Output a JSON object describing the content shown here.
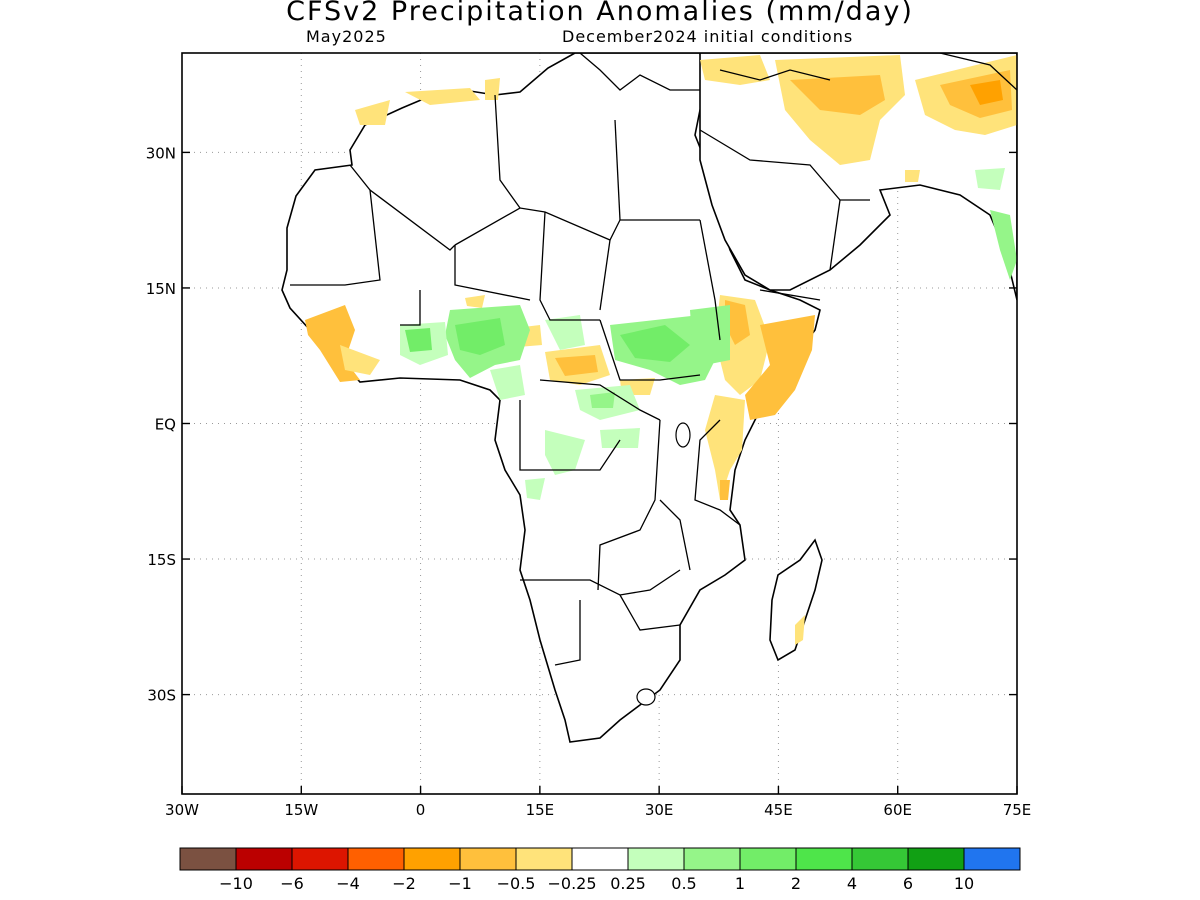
{
  "title": "CFSv2 Precipitation Anomalies (mm/day)",
  "valid_period": "May2025",
  "init_conditions": "December2024 initial conditions",
  "map": {
    "lon_range": [
      -30,
      75
    ],
    "lat_range": [
      -41,
      41
    ],
    "grid": "dotted",
    "x_ticks": [
      {
        "value": -30,
        "label": "30W"
      },
      {
        "value": -15,
        "label": "15W"
      },
      {
        "value": 0,
        "label": "0"
      },
      {
        "value": 15,
        "label": "15E"
      },
      {
        "value": 30,
        "label": "30E"
      },
      {
        "value": 45,
        "label": "45E"
      },
      {
        "value": 60,
        "label": "60E"
      },
      {
        "value": 75,
        "label": "75E"
      }
    ],
    "y_ticks": [
      {
        "value": 30,
        "label": "30N"
      },
      {
        "value": 15,
        "label": "15N"
      },
      {
        "value": 0,
        "label": "EQ"
      },
      {
        "value": -15,
        "label": "15S"
      },
      {
        "value": -30,
        "label": "30S"
      }
    ],
    "ocean_color": "#ffffff",
    "coast_color": "#000000"
  },
  "colorbar": {
    "colors": [
      "#7b5141",
      "#bb0000",
      "#dd1500",
      "#ff6000",
      "#ffa100",
      "#ffc03c",
      "#ffe37a",
      "#ffffff",
      "#c4ffbc",
      "#95f589",
      "#72ed68",
      "#4ee54a",
      "#35c836",
      "#11a014",
      "#2075ef"
    ],
    "labels": [
      "−10",
      "−6",
      "−4",
      "−2",
      "−1",
      "−0.5",
      "−0.25",
      "0.25",
      "0.5",
      "1",
      "2",
      "4",
      "6",
      "10"
    ]
  },
  "anomaly_colors": {
    "dry_light": "#ffe37a",
    "dry_medium": "#ffc03c",
    "dry_strong": "#ffa100",
    "wet_light": "#c4ffbc",
    "wet_medium": "#95f589",
    "wet_strong": "#72ed68"
  }
}
